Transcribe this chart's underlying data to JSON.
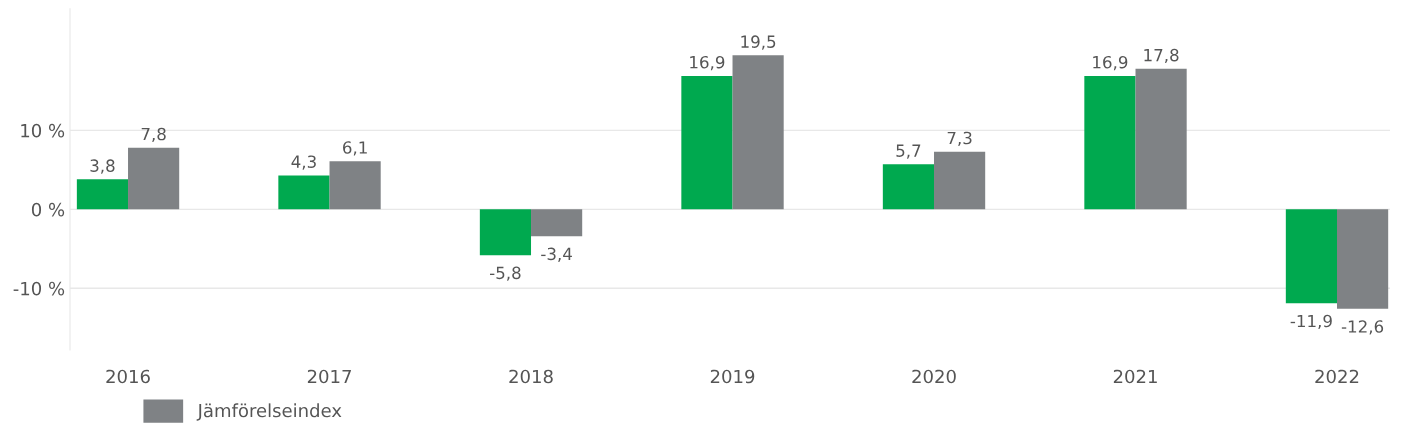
{
  "chart_data": {
    "type": "bar",
    "categories": [
      "2016",
      "2017",
      "2018",
      "2019",
      "2020",
      "2021",
      "2022"
    ],
    "series": [
      {
        "color": "#00a94f",
        "values": [
          3.8,
          4.3,
          -5.8,
          16.9,
          5.7,
          16.9,
          -11.9
        ],
        "value_labels": [
          "3,8",
          "4,3",
          "-5,8",
          "16,9",
          "5,7",
          "16,9",
          "-11,9"
        ]
      },
      {
        "name": "Jämförelseindex",
        "color": "#7f8285",
        "values": [
          7.8,
          6.1,
          -3.4,
          19.5,
          7.3,
          17.8,
          -12.6
        ],
        "value_labels": [
          "7,8",
          "6,1",
          "-3,4",
          "19,5",
          "7,3",
          "17,8",
          "-12,6"
        ]
      }
    ],
    "yticks": [
      {
        "value": -10,
        "label": "-10 %"
      },
      {
        "value": 0,
        "label": "0 %"
      },
      {
        "value": 10,
        "label": "10 %"
      }
    ],
    "ylim": [
      -17.8,
      25.4
    ],
    "grid": "y",
    "legend": "bottom left"
  }
}
